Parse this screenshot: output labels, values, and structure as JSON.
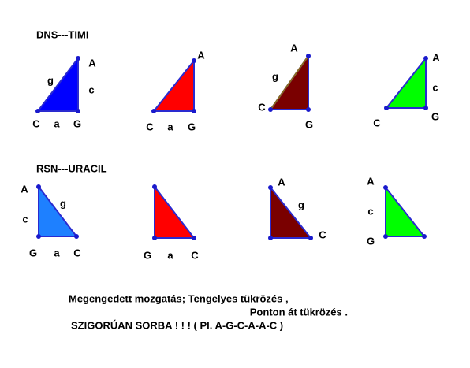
{
  "sections": [
    {
      "title": "DNS---TIMI",
      "triangles": [
        {
          "labels": [
            "A",
            "c",
            "g",
            "C",
            "a",
            "G"
          ]
        },
        {
          "labels": [
            "A",
            "C",
            "a",
            "G"
          ]
        },
        {
          "labels": [
            "A",
            "g",
            "C",
            "G"
          ]
        },
        {
          "labels": [
            "A",
            "c",
            "C",
            "G"
          ]
        }
      ]
    },
    {
      "title": "RSN---URACIL",
      "triangles": [
        {
          "labels": [
            "A",
            "g",
            "c",
            "G",
            "a",
            "C"
          ]
        },
        {
          "labels": [
            "G",
            "a",
            "C"
          ]
        },
        {
          "labels": [
            "A",
            "g",
            "C"
          ]
        },
        {
          "labels": [
            "A",
            "c",
            "G"
          ]
        }
      ]
    }
  ],
  "notes": [
    "Megengedett mozgatás;  Tengelyes tükrözés ,",
    "Ponton át tükrözés .",
    "SZIGORÚAN  SORBA  ! ! !  (  Pl.  A-G-C-A-A-C )"
  ]
}
